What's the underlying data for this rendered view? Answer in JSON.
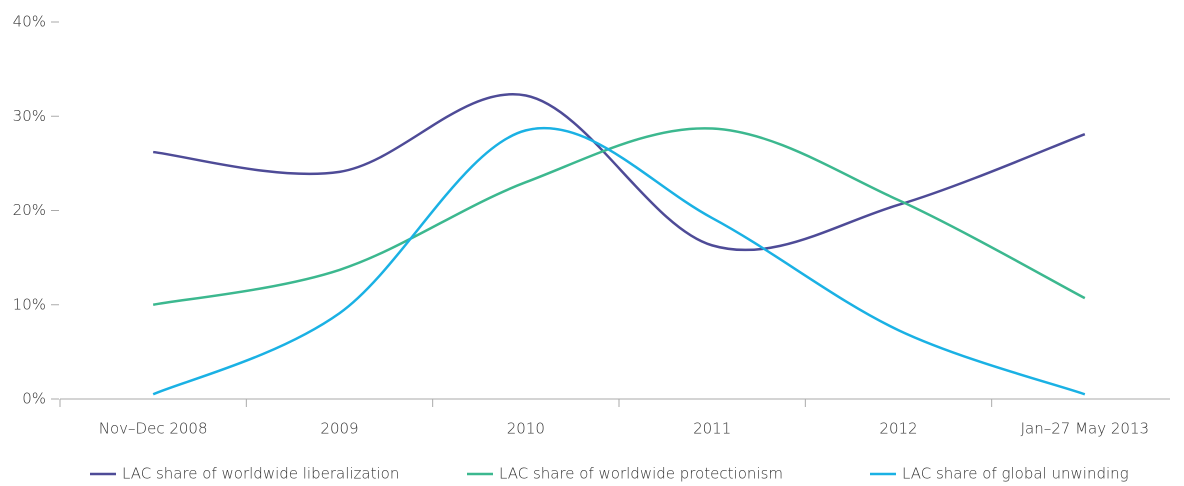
{
  "chart_data": {
    "type": "line",
    "categories": [
      "Nov–Dec 2008",
      "2009",
      "2010",
      "2011",
      "2012",
      "Jan–27 May 2013"
    ],
    "series": [
      {
        "name": "LAC share of worldwide liberalization",
        "color": "#4e4b97",
        "values": [
          26.2,
          24.1,
          32.2,
          16.3,
          20.6,
          28.1
        ]
      },
      {
        "name": "LAC share of worldwide protectionism",
        "color": "#3cb88f",
        "values": [
          10.0,
          13.7,
          23.0,
          28.7,
          21.1,
          10.7
        ]
      },
      {
        "name": "LAC share of global unwinding",
        "color": "#1ab1e4",
        "values": [
          0.5,
          9.1,
          28.5,
          19.2,
          7.3,
          0.5
        ]
      }
    ],
    "ylim": [
      0,
      40
    ],
    "yticks": [
      {
        "value": 0,
        "label": "0%"
      },
      {
        "value": 10,
        "label": "10%"
      },
      {
        "value": 20,
        "label": "20%"
      },
      {
        "value": 30,
        "label": "30%"
      },
      {
        "value": 40,
        "label": "40%"
      }
    ],
    "grid": false,
    "smooth": true,
    "legend": "bottom"
  }
}
